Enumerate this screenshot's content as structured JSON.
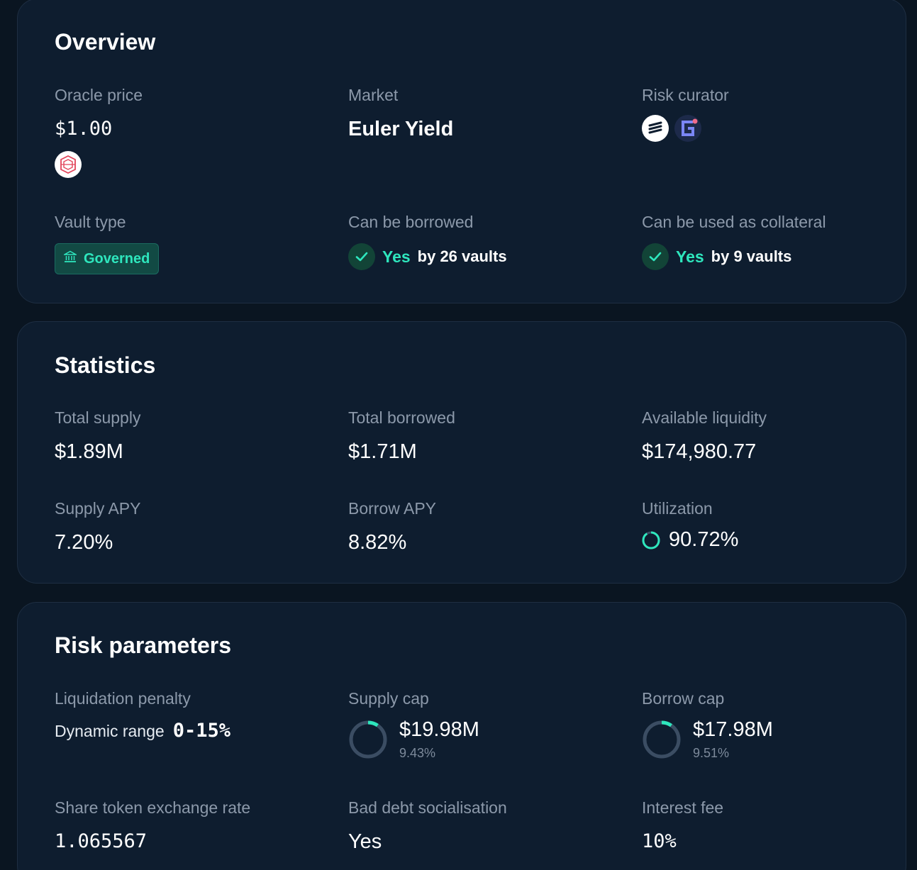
{
  "overview": {
    "title": "Overview",
    "oracle_price": {
      "label": "Oracle price",
      "value": "$1.00",
      "icon": "oracle-provider-icon"
    },
    "market": {
      "label": "Market",
      "value": "Euler Yield"
    },
    "risk_curator": {
      "label": "Risk curator",
      "icons": [
        "curator-logo-icon",
        "curator-g-logo-icon"
      ]
    },
    "vault_type": {
      "label": "Vault type",
      "badge": "Governed",
      "icon": "bank-icon"
    },
    "can_be_borrowed": {
      "label": "Can be borrowed",
      "yes": "Yes",
      "detail": "by 26 vaults"
    },
    "collateral": {
      "label": "Can be used as collateral",
      "yes": "Yes",
      "detail": "by 9 vaults"
    }
  },
  "statistics": {
    "title": "Statistics",
    "total_supply": {
      "label": "Total supply",
      "value": "$1.89M"
    },
    "total_borrowed": {
      "label": "Total borrowed",
      "value": "$1.71M"
    },
    "available_liquidity": {
      "label": "Available liquidity",
      "value": "$174,980.77"
    },
    "supply_apy": {
      "label": "Supply APY",
      "value": "7.20%"
    },
    "borrow_apy": {
      "label": "Borrow APY",
      "value": "8.82%"
    },
    "utilization": {
      "label": "Utilization",
      "value": "90.72%",
      "fraction": 0.9072
    }
  },
  "risk": {
    "title": "Risk parameters",
    "liquidation_penalty": {
      "label": "Liquidation penalty",
      "range_label": "Dynamic range",
      "value": "0-15%"
    },
    "supply_cap": {
      "label": "Supply cap",
      "value": "$19.98M",
      "percent": "9.43%",
      "fraction": 0.0943
    },
    "borrow_cap": {
      "label": "Borrow cap",
      "value": "$17.98M",
      "percent": "9.51%",
      "fraction": 0.0951
    },
    "exchange_rate": {
      "label": "Share token exchange rate",
      "value": "1.065567"
    },
    "bad_debt": {
      "label": "Bad debt socialisation",
      "value": "Yes"
    },
    "interest_fee": {
      "label": "Interest fee",
      "value": "10%"
    }
  },
  "colors": {
    "accent": "#2ee6bd",
    "background": "#0a1521",
    "card": "#0e1d2f",
    "ring_track": "#3b4d63"
  }
}
